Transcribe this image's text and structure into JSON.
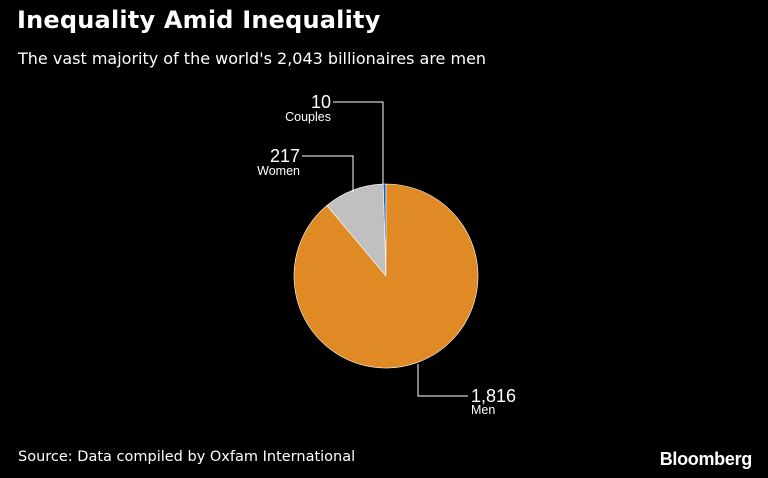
{
  "title": "Inequality Amid Inequality",
  "subtitle": "The vast majority of the world's 2,043 billionaires are men",
  "source": "Source: Data compiled by Oxfam International",
  "logo": "Bloomberg",
  "chart_data": {
    "type": "pie",
    "total": 2043,
    "slices": [
      {
        "name": "Couples",
        "value": 10,
        "value_label": "10",
        "color": "#1f5fb4"
      },
      {
        "name": "Women",
        "value": 217,
        "value_label": "217",
        "color": "#c0c0c0"
      },
      {
        "name": "Men",
        "value": 1816,
        "value_label": "1,816",
        "color": "#e08a25"
      }
    ],
    "legend": "none",
    "labels": "callout leader lines"
  }
}
